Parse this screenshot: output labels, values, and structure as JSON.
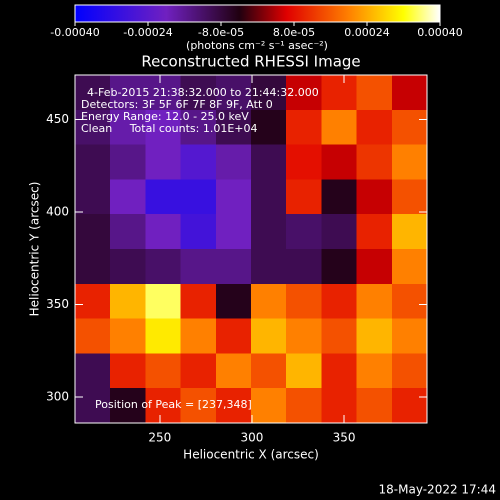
{
  "chart_data": {
    "type": "heatmap",
    "title": "Reconstructed RHESSI Image",
    "xlabel": "Heliocentric X (arcsec)",
    "ylabel": "Heliocentric Y (arcsec)",
    "colorbar_label": "(photons cm⁻² s⁻¹ asec⁻²)",
    "annotations": [
      "4-Feb-2015 21:38:32.000 to 21:44:32.000",
      "Detectors: 3F 5F 6F 7F 8F 9F, Att 0",
      "Energy Range: 12.0 - 25.0 keV",
      "Clean     Total counts: 1.01E+04"
    ],
    "peak_label": "Position of Peak = [237,348]",
    "footer": "18-May-2022 17:44",
    "xlim": [
      204,
      395
    ],
    "ylim": [
      286,
      474
    ],
    "xticks": [
      250,
      300,
      350
    ],
    "yticks": [
      300,
      350,
      400,
      450
    ],
    "clim": [
      -0.0004,
      0.0004
    ],
    "cticks": [
      {
        "value": -0.0004,
        "label": "-0.00040"
      },
      {
        "value": -0.00024,
        "label": "-0.00024"
      },
      {
        "value": -8e-05,
        "label": "-8.0e-05"
      },
      {
        "value": 8e-05,
        "label": "8.0e-05"
      },
      {
        "value": 0.00024,
        "label": "0.00024"
      },
      {
        "value": 0.0004,
        "label": "0.00040"
      }
    ],
    "colormap": [
      [
        0,
        "#0000ff"
      ],
      [
        0.25,
        "#7020c0"
      ],
      [
        0.45,
        "#200010"
      ],
      [
        0.58,
        "#e00000"
      ],
      [
        0.75,
        "#ff8000"
      ],
      [
        0.9,
        "#ffff00"
      ],
      [
        1,
        "#ffffff"
      ]
    ],
    "z": [
      [
        -0.0001,
        -0.00015,
        -0.00015,
        -0.0001,
        -0.00012,
        -8e-05,
        5e-05,
        0.0001,
        0.00015,
        5e-05
      ],
      [
        -0.00012,
        -0.00018,
        -0.0002,
        -0.00015,
        -0.0001,
        -5e-05,
        0.0001,
        0.0002,
        0.0001,
        0.00015
      ],
      [
        -0.0001,
        -0.00015,
        -0.0002,
        -0.00025,
        -0.00018,
        -0.0001,
        8e-05,
        5e-05,
        0.00012,
        0.0002
      ],
      [
        -0.0001,
        -0.0002,
        -0.0003,
        -0.0003,
        -0.0002,
        -0.0001,
        0.0001,
        -5e-05,
        5e-05,
        0.00015
      ],
      [
        -8e-05,
        -0.00015,
        -0.0002,
        -0.00028,
        -0.0002,
        -0.0001,
        -0.00012,
        -0.0001,
        0.0001,
        0.00025
      ],
      [
        -8e-05,
        -0.0001,
        -0.00012,
        -0.00015,
        -0.00015,
        -0.0001,
        -0.0001,
        -5e-05,
        5e-05,
        0.0002
      ],
      [
        0.0001,
        0.00025,
        0.00035,
        0.0001,
        -5e-05,
        0.0002,
        0.00015,
        0.0001,
        0.0002,
        0.00015
      ],
      [
        0.00015,
        0.0002,
        0.0003,
        0.0002,
        0.0001,
        0.00025,
        0.0002,
        0.00015,
        0.00025,
        0.0002
      ],
      [
        -0.0001,
        0.0001,
        0.00015,
        0.0001,
        0.0002,
        0.00015,
        0.00025,
        0.0001,
        0.0002,
        0.00015
      ],
      [
        -0.0001,
        -5e-05,
        0.0001,
        0.00015,
        0.0001,
        0.0002,
        0.00015,
        0.0001,
        0.00015,
        0.0001
      ]
    ]
  }
}
